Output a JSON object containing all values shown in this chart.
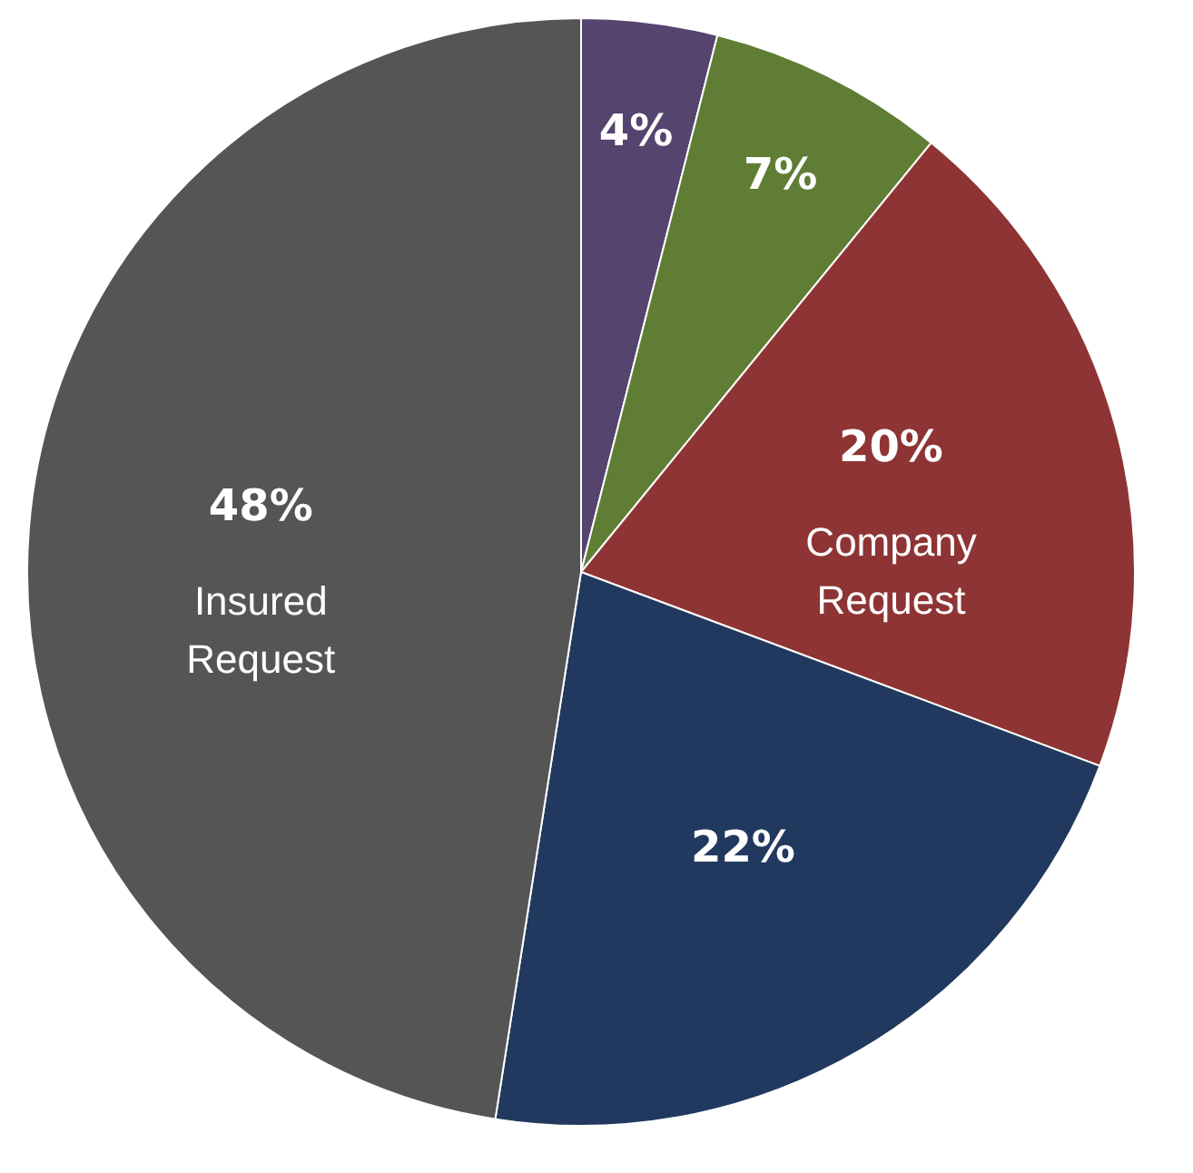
{
  "chart_data": {
    "type": "pie",
    "categories": [
      null,
      null,
      "Company Request",
      null,
      "Insured Request"
    ],
    "values": [
      4,
      7,
      20,
      22,
      48
    ],
    "colors": [
      "#54446e",
      "#5f7d34",
      "#8e3434",
      "#21395e",
      "#555555"
    ],
    "value_labels": [
      "4%",
      "7%",
      "20%",
      "22%",
      "48%"
    ]
  }
}
